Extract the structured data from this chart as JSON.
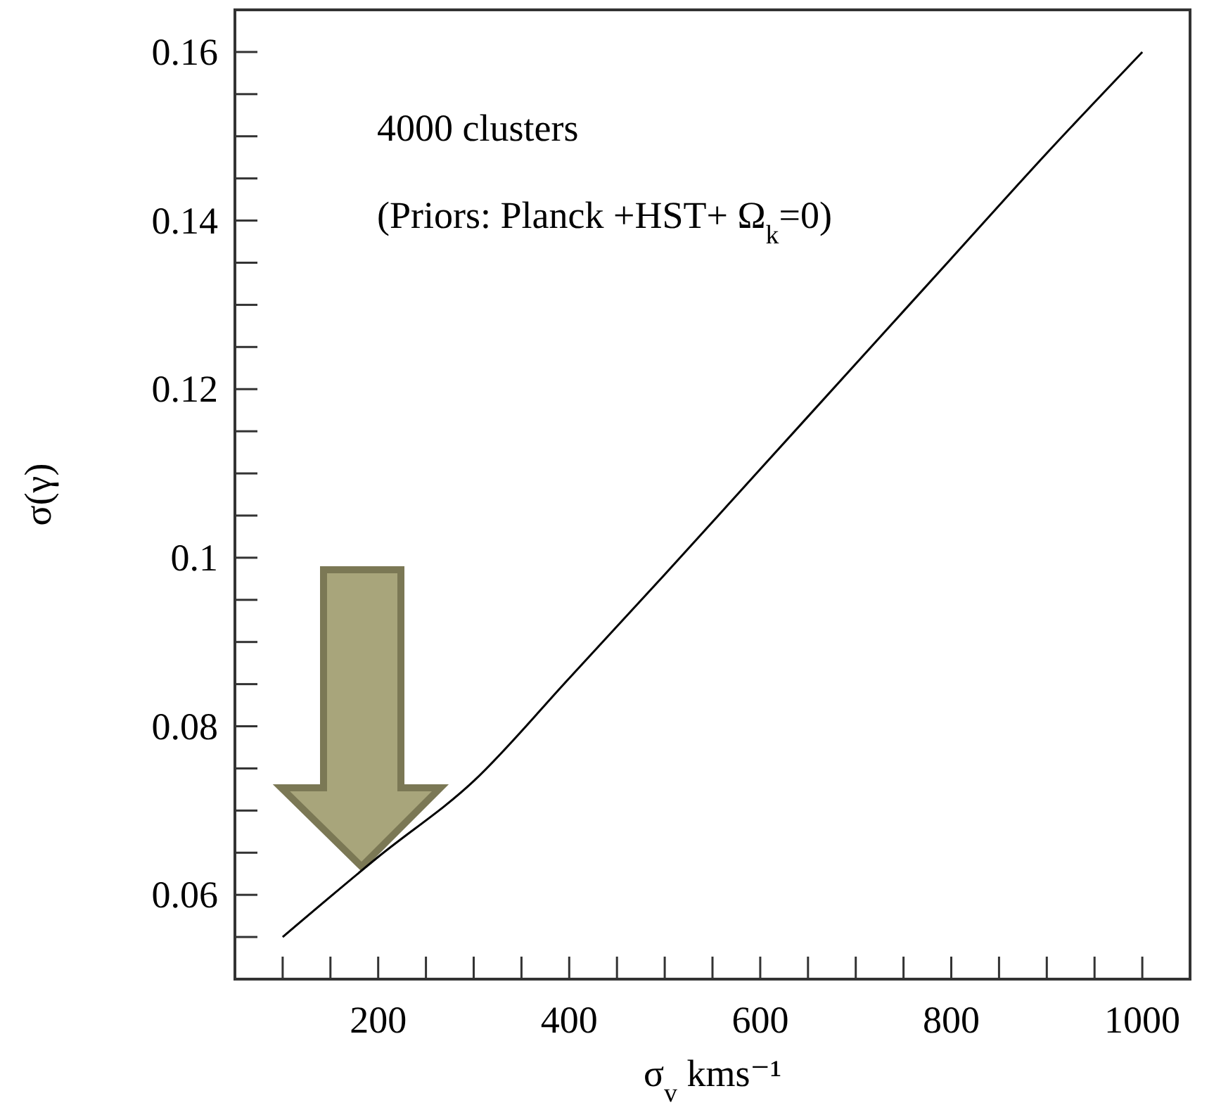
{
  "chart_data": {
    "type": "line",
    "xlabel": "σ$_{v}$ kms⁻¹",
    "ylabel": "σ(γ)",
    "annotations": [
      "4000 clusters",
      "(Priors: Planck  +HST+  Ω$_{k}$=0)"
    ],
    "x": [
      100,
      200,
      300,
      400,
      500,
      600,
      700,
      800,
      900,
      1000
    ],
    "series": [
      {
        "color": "#000000",
        "values": [
          0.055,
          0.0645,
          0.0735,
          0.0857,
          0.098,
          0.1105,
          0.123,
          0.1355,
          0.148,
          0.16
        ]
      }
    ],
    "xlim": [
      50,
      1050
    ],
    "xticks": [
      {
        "value": 100,
        "label": null
      },
      {
        "value": 150,
        "label": null
      },
      200,
      {
        "value": 250,
        "label": null
      },
      {
        "value": 300,
        "label": null
      },
      {
        "value": 350,
        "label": null
      },
      400,
      {
        "value": 450,
        "label": null
      },
      {
        "value": 500,
        "label": null
      },
      {
        "value": 550,
        "label": null
      },
      600,
      {
        "value": 650,
        "label": null
      },
      {
        "value": 700,
        "label": null
      },
      {
        "value": 750,
        "label": null
      },
      800,
      {
        "value": 850,
        "label": null
      },
      {
        "value": 900,
        "label": null
      },
      {
        "value": 950,
        "label": null
      },
      1000
    ],
    "ylim": [
      0.05,
      0.165
    ],
    "yticks": [
      {
        "value": 0.055,
        "label": null
      },
      0.06,
      {
        "value": 0.065,
        "label": null
      },
      {
        "value": 0.07,
        "label": null
      },
      {
        "value": 0.075,
        "label": null
      },
      0.08,
      {
        "value": 0.085,
        "label": null
      },
      {
        "value": 0.09,
        "label": null
      },
      {
        "value": 0.095,
        "label": null
      },
      0.1,
      {
        "value": 0.105,
        "label": null
      },
      {
        "value": 0.11,
        "label": null
      },
      {
        "value": 0.115,
        "label": null
      },
      0.12,
      {
        "value": 0.125,
        "label": null
      },
      {
        "value": 0.13,
        "label": null
      },
      {
        "value": 0.135,
        "label": null
      },
      0.14,
      {
        "value": 0.145,
        "label": null
      },
      {
        "value": 0.15,
        "label": null
      },
      {
        "value": 0.155,
        "label": null
      },
      0.16
    ],
    "marker": "none",
    "line_style": "solid"
  }
}
